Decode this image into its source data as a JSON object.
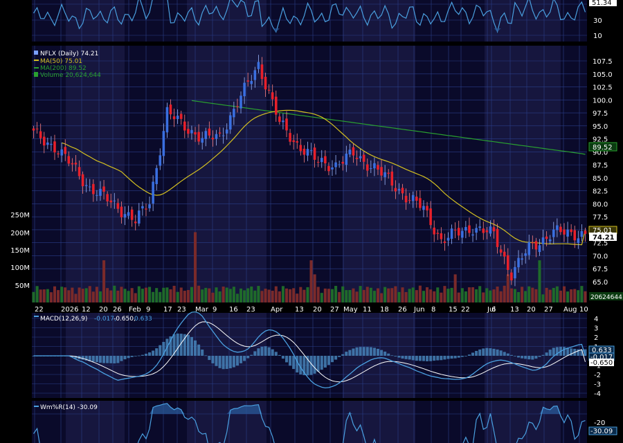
{
  "colors": {
    "background": "#000000",
    "panel": "#06061a",
    "band_dark": "#0a0a2a",
    "band_light": "#16163e",
    "grid": "#2a3f8a",
    "candle_up": "#3a6fe0",
    "candle_down": "#e8202a",
    "ma50": "#d4c020",
    "ma200": "#2aa030",
    "vol_up": "#1f6a2a",
    "vol_down": "#7a2a2a",
    "macd": "#4aa0e0",
    "signal": "#ffffff",
    "histogram": "#4a8ac0",
    "willr": "#4aa0e0",
    "price_tag": "#ffffff"
  },
  "rsi_panel": {
    "tag": "51.34",
    "ticks": [
      "30",
      "10"
    ]
  },
  "price_panel": {
    "legend": [
      {
        "text": "NFLX (Daily) 74.21",
        "color": "#ffffff",
        "swatch": "#ffffff"
      },
      {
        "text": "MA(50) 75.01",
        "color": "#d4c020",
        "swatch": "#d4c020"
      },
      {
        "text": "MA(200) 89.52",
        "color": "#2aa030",
        "swatch": "#2aa030"
      },
      {
        "text": "Volume 20,624,644",
        "color": "#2aa030",
        "swatch": "#2aa030"
      }
    ],
    "y_ticks": [
      "107.5",
      "105.0",
      "102.5",
      "100.0",
      "97.5",
      "95.0",
      "92.5",
      "90.0",
      "87.5",
      "85.0",
      "82.5",
      "80.0",
      "77.5",
      "75.0",
      "72.5",
      "70.0",
      "67.5",
      "65.0"
    ],
    "tags": {
      "ma200": "89.52",
      "ma50": "75.01",
      "last": "74.21",
      "volume": "20624644"
    },
    "volume_ticks": [
      "250M",
      "200M",
      "150M",
      "100M",
      "50M"
    ]
  },
  "x_labels": [
    "22",
    "2026",
    "12",
    "20",
    "26",
    "Feb",
    "9",
    "17",
    "23",
    "Mar",
    "9",
    "16",
    "23",
    "Apr",
    "13",
    "20",
    "27",
    "May",
    "11",
    "18",
    "26",
    "Jun",
    "8",
    "15",
    "22",
    "Jul",
    "6",
    "13",
    "20",
    "27",
    "Aug",
    "10"
  ],
  "macd_panel": {
    "legend_name": "MACD(12,26,9)",
    "legend_vals": [
      {
        "text": "-0.017,",
        "color": "#4aa0e0"
      },
      {
        "text": "-0.650,",
        "color": "#ffffff"
      },
      {
        "text": "0.633",
        "color": "#4aa0e0"
      }
    ],
    "y_ticks": [
      "4",
      "3",
      "2",
      "1",
      "-1",
      "-2",
      "-3",
      "-4"
    ],
    "tags": [
      "0.633",
      "-0.017",
      "-0.650"
    ]
  },
  "willr_panel": {
    "legend": "Wm%R(14) -30.09",
    "y_ticks": [
      "-20"
    ],
    "tag": "-30.09"
  },
  "chart_data": {
    "type": "candlestick",
    "price": {
      "type": "ohlc",
      "series_name": "NFLX (Daily)",
      "last_close": 74.21,
      "ylim": [
        64.5,
        109
      ],
      "approx_closes_by_month": [
        {
          "x": "2026-01-02",
          "close": 93.5
        },
        {
          "x": "2026-01-12",
          "close": 91.0
        },
        {
          "x": "2026-01-20",
          "close": 86.5
        },
        {
          "x": "2026-01-26",
          "close": 83.0
        },
        {
          "x": "2026-02-09",
          "close": 79.5
        },
        {
          "x": "2026-02-17",
          "close": 76.5
        },
        {
          "x": "2026-02-23",
          "close": 80.5
        },
        {
          "x": "2026-03-02",
          "close": 97.5
        },
        {
          "x": "2026-03-09",
          "close": 95.0
        },
        {
          "x": "2026-03-16",
          "close": 92.5
        },
        {
          "x": "2026-03-23",
          "close": 93.0
        },
        {
          "x": "2026-04-06",
          "close": 100.5
        },
        {
          "x": "2026-04-13",
          "close": 107.0
        },
        {
          "x": "2026-04-20",
          "close": 95.5
        },
        {
          "x": "2026-04-27",
          "close": 91.5
        },
        {
          "x": "2026-05-04",
          "close": 88.0
        },
        {
          "x": "2026-05-11",
          "close": 87.5
        },
        {
          "x": "2026-05-18",
          "close": 89.5
        },
        {
          "x": "2026-05-26",
          "close": 87.0
        },
        {
          "x": "2026-06-08",
          "close": 81.5
        },
        {
          "x": "2026-06-15",
          "close": 79.0
        },
        {
          "x": "2026-06-22",
          "close": 73.0
        },
        {
          "x": "2026-07-06",
          "close": 75.5
        },
        {
          "x": "2026-07-13",
          "close": 74.0
        },
        {
          "x": "2026-07-20",
          "close": 66.5
        },
        {
          "x": "2026-07-27",
          "close": 71.5
        },
        {
          "x": "2026-08-03",
          "close": 74.5
        },
        {
          "x": "2026-08-10",
          "close": 74.21
        }
      ]
    },
    "ma50": {
      "last": 75.01
    },
    "ma200": {
      "last": 89.52
    },
    "volume": {
      "last": 20624644,
      "ylim_millions": [
        0,
        250
      ]
    },
    "macd": {
      "params": "12,26,9",
      "macd": -0.017,
      "signal": -0.65,
      "histogram": 0.633,
      "ylim": [
        -4.5,
        4.5
      ]
    },
    "williams_r": {
      "period": 14,
      "last": -30.09
    },
    "grid": true
  }
}
